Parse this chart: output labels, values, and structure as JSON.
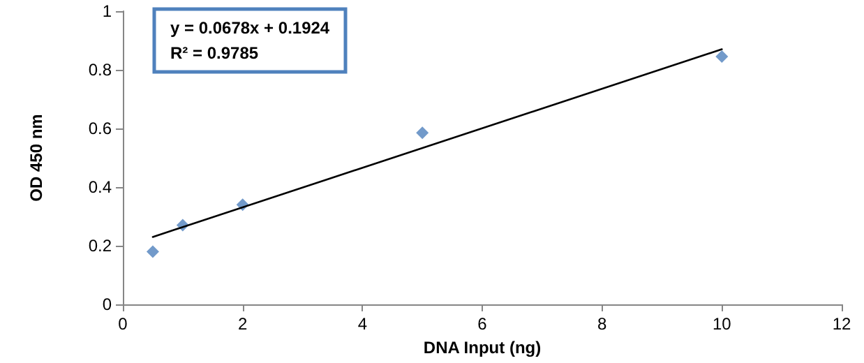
{
  "chart_data": {
    "type": "scatter",
    "xlabel": "DNA Input (ng)",
    "ylabel": "OD 450 nm",
    "annotations": [
      "y = 0.0678x + 0.1924",
      "R² = 0.9785"
    ],
    "x": [
      0.5,
      1,
      2,
      5,
      10
    ],
    "series": [
      {
        "color": "#4f81bd",
        "values": [
          0.18,
          0.27,
          0.34,
          0.585,
          0.845
        ],
        "marker": "diamond"
      },
      {
        "type": "line",
        "color": "#000000",
        "x": [
          0.5,
          10
        ],
        "values": [
          0.23,
          0.87
        ],
        "marker": "none",
        "line_style": "solid"
      }
    ],
    "xlim": [
      0,
      12
    ],
    "xticks": [
      0,
      2,
      4,
      6,
      8,
      10,
      12
    ],
    "ylim": [
      0,
      1
    ],
    "yticks": [
      0,
      0.2,
      0.4,
      0.6,
      0.8,
      1
    ],
    "grid": false
  }
}
